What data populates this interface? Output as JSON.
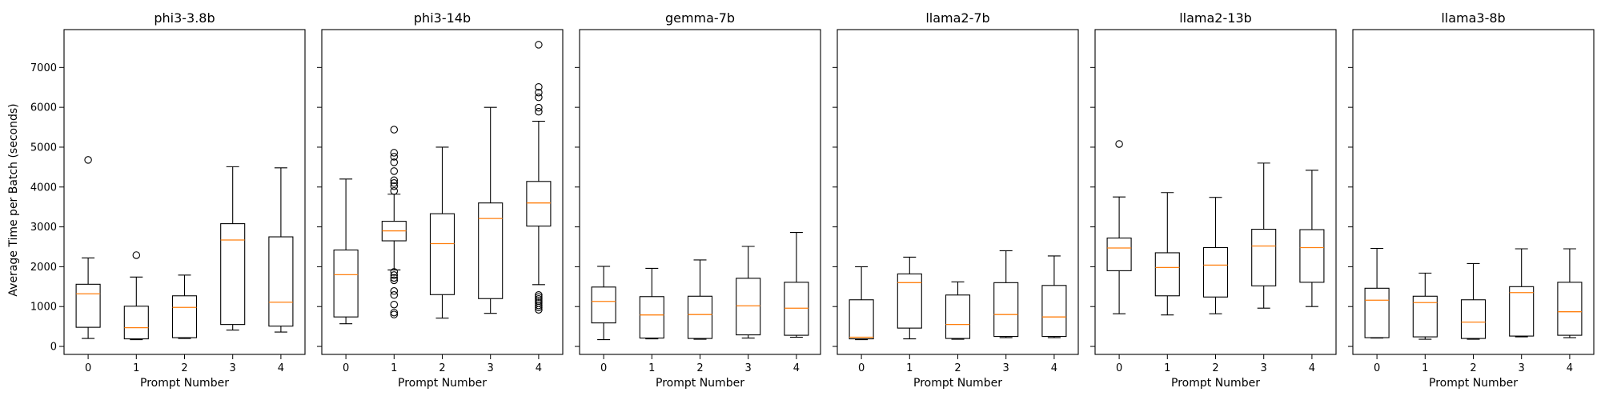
{
  "chart_data": {
    "type": "box",
    "ylabel": "Average Time per Batch (seconds)",
    "xlabel": "Prompt Number",
    "categories": [
      "0",
      "1",
      "2",
      "3",
      "4"
    ],
    "ylim": [
      -200,
      7950
    ],
    "yticks": [
      0,
      1000,
      2000,
      3000,
      4000,
      5000,
      6000,
      7000
    ],
    "colors": {
      "box": "#000000",
      "median": "#ff7f0e",
      "frame": "#000000"
    },
    "panels": [
      {
        "title": "phi3-3.8b",
        "boxes": [
          {
            "whislo": 200,
            "q1": 480,
            "med": 1320,
            "q3": 1560,
            "whishi": 2220,
            "fliers": [
              4680
            ]
          },
          {
            "whislo": 170,
            "q1": 190,
            "med": 470,
            "q3": 1010,
            "whishi": 1740,
            "fliers": [
              2290
            ]
          },
          {
            "whislo": 200,
            "q1": 220,
            "med": 980,
            "q3": 1270,
            "whishi": 1790,
            "fliers": []
          },
          {
            "whislo": 410,
            "q1": 550,
            "med": 2670,
            "q3": 3080,
            "whishi": 4510,
            "fliers": []
          },
          {
            "whislo": 360,
            "q1": 510,
            "med": 1110,
            "q3": 2750,
            "whishi": 4480,
            "fliers": []
          }
        ]
      },
      {
        "title": "phi3-14b",
        "boxes": [
          {
            "whislo": 570,
            "q1": 740,
            "med": 1800,
            "q3": 2420,
            "whishi": 4200,
            "fliers": []
          },
          {
            "whislo": 1920,
            "q1": 2650,
            "med": 2900,
            "q3": 3140,
            "whishi": 3820,
            "fliers": [
              800,
              850,
              1050,
              1290,
              1390,
              1660,
              1720,
              1790,
              1870,
              3900,
              4020,
              4100,
              4170,
              4400,
              4620,
              4760,
              4860,
              5440
            ]
          },
          {
            "whislo": 710,
            "q1": 1300,
            "med": 2580,
            "q3": 3330,
            "whishi": 5000,
            "fliers": []
          },
          {
            "whislo": 830,
            "q1": 1200,
            "med": 3210,
            "q3": 3600,
            "whishi": 6000,
            "fliers": []
          },
          {
            "whislo": 1550,
            "q1": 3020,
            "med": 3600,
            "q3": 4140,
            "whishi": 5650,
            "fliers": [
              920,
              980,
              1030,
              1090,
              1140,
              1190,
              1240,
              1290,
              5890,
              5990,
              6250,
              6370,
              6510,
              7570
            ]
          }
        ]
      },
      {
        "title": "gemma-7b",
        "boxes": [
          {
            "whislo": 170,
            "q1": 590,
            "med": 1130,
            "q3": 1490,
            "whishi": 2010,
            "fliers": []
          },
          {
            "whislo": 190,
            "q1": 210,
            "med": 790,
            "q3": 1250,
            "whishi": 1960,
            "fliers": []
          },
          {
            "whislo": 180,
            "q1": 200,
            "med": 800,
            "q3": 1260,
            "whishi": 2170,
            "fliers": []
          },
          {
            "whislo": 210,
            "q1": 290,
            "med": 1020,
            "q3": 1710,
            "whishi": 2510,
            "fliers": []
          },
          {
            "whislo": 230,
            "q1": 280,
            "med": 960,
            "q3": 1610,
            "whishi": 2860,
            "fliers": []
          }
        ]
      },
      {
        "title": "llama2-7b",
        "boxes": [
          {
            "whislo": 170,
            "q1": 190,
            "med": 230,
            "q3": 1170,
            "whishi": 2000,
            "fliers": []
          },
          {
            "whislo": 190,
            "q1": 460,
            "med": 1600,
            "q3": 1820,
            "whishi": 2240,
            "fliers": []
          },
          {
            "whislo": 180,
            "q1": 200,
            "med": 550,
            "q3": 1290,
            "whishi": 1620,
            "fliers": []
          },
          {
            "whislo": 220,
            "q1": 250,
            "med": 800,
            "q3": 1600,
            "whishi": 2400,
            "fliers": []
          },
          {
            "whislo": 220,
            "q1": 250,
            "med": 740,
            "q3": 1530,
            "whishi": 2270,
            "fliers": []
          }
        ]
      },
      {
        "title": "llama2-13b",
        "boxes": [
          {
            "whislo": 820,
            "q1": 1900,
            "med": 2470,
            "q3": 2720,
            "whishi": 3750,
            "fliers": [
              5080
            ]
          },
          {
            "whislo": 790,
            "q1": 1270,
            "med": 1980,
            "q3": 2350,
            "whishi": 3860,
            "fliers": []
          },
          {
            "whislo": 820,
            "q1": 1240,
            "med": 2040,
            "q3": 2480,
            "whishi": 3740,
            "fliers": []
          },
          {
            "whislo": 960,
            "q1": 1520,
            "med": 2520,
            "q3": 2940,
            "whishi": 4600,
            "fliers": []
          },
          {
            "whislo": 1000,
            "q1": 1610,
            "med": 2480,
            "q3": 2930,
            "whishi": 4420,
            "fliers": []
          }
        ]
      },
      {
        "title": "llama3-8b",
        "boxes": [
          {
            "whislo": 210,
            "q1": 220,
            "med": 1160,
            "q3": 1460,
            "whishi": 2460,
            "fliers": []
          },
          {
            "whislo": 180,
            "q1": 240,
            "med": 1100,
            "q3": 1260,
            "whishi": 1840,
            "fliers": []
          },
          {
            "whislo": 180,
            "q1": 200,
            "med": 610,
            "q3": 1170,
            "whishi": 2080,
            "fliers": []
          },
          {
            "whislo": 240,
            "q1": 260,
            "med": 1350,
            "q3": 1500,
            "whishi": 2450,
            "fliers": []
          },
          {
            "whislo": 220,
            "q1": 280,
            "med": 870,
            "q3": 1610,
            "whishi": 2450,
            "fliers": []
          }
        ]
      }
    ]
  }
}
